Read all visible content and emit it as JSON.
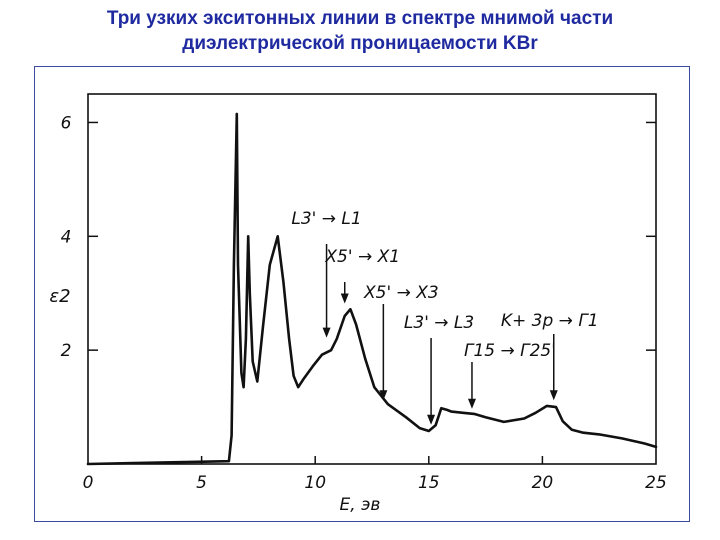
{
  "slide": {
    "title_line1": "Три узких экситонных линии в спектре мнимой части",
    "title_line2": "диэлектрической проницаемости KBr"
  },
  "colors": {
    "title": "#1f2aa0",
    "frame": "#3a4aa0",
    "ink": "#111111"
  },
  "chart_data": {
    "type": "line",
    "title": "",
    "xlabel": "E, эв",
    "ylabel": "ε2",
    "xlim": [
      0,
      25
    ],
    "ylim": [
      0,
      6.5
    ],
    "x_ticks": [
      {
        "value": 0,
        "label": "0"
      },
      {
        "value": 5,
        "label": "5"
      },
      {
        "value": 10,
        "label": "10"
      },
      {
        "value": 15,
        "label": "15"
      },
      {
        "value": 20,
        "label": "20"
      },
      {
        "value": 25,
        "label": "25"
      }
    ],
    "y_ticks": [
      {
        "value": 2,
        "label": "2"
      },
      {
        "value": 4,
        "label": "4"
      },
      {
        "value": 6,
        "label": "6"
      }
    ],
    "grid": false,
    "series": [
      {
        "x": [
          0,
          6.2,
          6.32,
          6.42,
          6.55,
          6.6,
          6.75,
          6.85,
          6.95,
          7.05,
          7.12,
          7.25,
          7.45,
          7.7,
          8.0,
          8.35,
          8.6,
          8.85,
          9.05,
          9.25,
          9.5,
          9.9,
          10.3,
          10.7,
          10.95,
          11.3,
          11.55,
          11.8,
          12.2,
          12.6,
          13.2,
          14.0,
          14.6,
          15.0,
          15.3,
          15.55,
          15.8,
          16.0,
          16.5,
          17.0,
          17.5,
          18.3,
          19.2,
          19.7,
          20.2,
          20.6,
          20.9,
          21.3,
          21.8,
          22.5,
          23.5,
          24.5,
          25.0
        ],
        "y": [
          0,
          0.05,
          0.5,
          3.5,
          6.15,
          3.5,
          1.6,
          1.35,
          2.2,
          4.0,
          3.0,
          1.8,
          1.45,
          2.4,
          3.5,
          4.0,
          3.2,
          2.2,
          1.55,
          1.35,
          1.5,
          1.72,
          1.92,
          2.0,
          2.2,
          2.6,
          2.72,
          2.45,
          1.85,
          1.35,
          1.05,
          0.82,
          0.63,
          0.58,
          0.68,
          0.98,
          0.95,
          0.92,
          0.9,
          0.88,
          0.82,
          0.74,
          0.8,
          0.9,
          1.02,
          1.0,
          0.75,
          0.6,
          0.55,
          0.52,
          0.45,
          0.36,
          0.3
        ]
      }
    ],
    "annotations": [
      {
        "text": "L3' → L1",
        "x": 10.5,
        "y": 2.15
      },
      {
        "text": "X5' → X1",
        "x": 11.3,
        "y": 2.75
      },
      {
        "text": "X5' → X3",
        "x": 13.0,
        "y": 1.05
      },
      {
        "text": "L3' → L3",
        "x": 15.1,
        "y": 0.62
      },
      {
        "text": "Γ15 → Γ25'",
        "x": 16.9,
        "y": 0.9
      },
      {
        "text": "K+ 3p → Γ1",
        "x": 20.5,
        "y": 1.05
      }
    ]
  }
}
